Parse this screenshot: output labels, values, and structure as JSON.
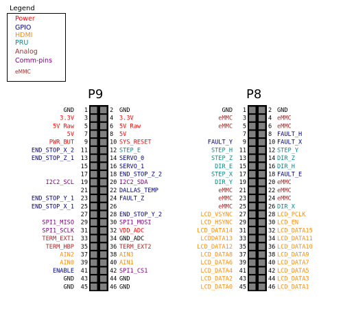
{
  "legend": {
    "title": "Legend",
    "items": [
      {
        "text": "Power",
        "color": "#ff0000"
      },
      {
        "text": "GPIO",
        "color": "#000080"
      },
      {
        "text": "HDMI",
        "color": "#ff8c00"
      },
      {
        "text": "PRU",
        "color": "#008b8b"
      },
      {
        "text": "Analog",
        "color": "#a52a2a"
      },
      {
        "text": "Comm-pins",
        "color": "#800080"
      },
      {
        "text": "eMMC",
        "color": "#a52a2a"
      }
    ]
  },
  "headers": [
    {
      "name": "P9",
      "rows": [
        [
          {
            "t": "GND",
            "c": "k"
          },
          {
            "t": "GND",
            "c": "k"
          }
        ],
        [
          {
            "t": "3.3V",
            "c": "r"
          },
          {
            "t": "3.3V",
            "c": "r"
          }
        ],
        [
          {
            "t": "5V Raw",
            "c": "r"
          },
          {
            "t": "5V Raw",
            "c": "r"
          }
        ],
        [
          {
            "t": "5V",
            "c": "r"
          },
          {
            "t": "5V",
            "c": "r"
          }
        ],
        [
          {
            "t": "PWR_BUT",
            "c": "r"
          },
          {
            "t": "SYS_RESET",
            "c": "r"
          }
        ],
        [
          {
            "t": "END_STOP_X_2",
            "c": "n"
          },
          {
            "t": "STEP_E",
            "c": "t"
          }
        ],
        [
          {
            "t": "END_STOP_Z_1",
            "c": "n"
          },
          {
            "t": "SERVO_0",
            "c": "n"
          }
        ],
        [
          {
            "t": "",
            "c": "n"
          },
          {
            "t": "SERVO_1",
            "c": "n"
          }
        ],
        [
          {
            "t": "",
            "c": "n"
          },
          {
            "t": "END_STOP_Z_2",
            "c": "n"
          }
        ],
        [
          {
            "t": "I2C2_SCL",
            "c": "p"
          },
          {
            "t": "I2C2_SDA",
            "c": "p"
          }
        ],
        [
          {
            "t": "",
            "c": "n"
          },
          {
            "t": "DALLAS_TEMP",
            "c": "n"
          }
        ],
        [
          {
            "t": "END_STOP_Y_1",
            "c": "n"
          },
          {
            "t": "FAULT_Z",
            "c": "n"
          }
        ],
        [
          {
            "t": "END_STOP_X_1",
            "c": "n"
          },
          {
            "t": "",
            "c": "n"
          }
        ],
        [
          {
            "t": "",
            "c": "n"
          },
          {
            "t": "END_STOP_Y_2",
            "c": "n"
          }
        ],
        [
          {
            "t": "SPI1_MISO",
            "c": "p"
          },
          {
            "t": "SPI1_MOSI",
            "c": "p"
          }
        ],
        [
          {
            "t": "SPI1_SCLK",
            "c": "p"
          },
          {
            "t": "VDD_ADC",
            "c": "r"
          }
        ],
        [
          {
            "t": "TERM_EXT1",
            "c": "b"
          },
          {
            "t": "GND_ADC",
            "c": "k"
          }
        ],
        [
          {
            "t": "TERM_HBP",
            "c": "b"
          },
          {
            "t": "TERM_EXT2",
            "c": "b"
          }
        ],
        [
          {
            "t": "AIN2",
            "c": "o"
          },
          {
            "t": "AIN3",
            "c": "o"
          }
        ],
        [
          {
            "t": "AIN0",
            "c": "o"
          },
          {
            "t": "AIN1",
            "c": "o"
          }
        ],
        [
          {
            "t": "ENABLE",
            "c": "n"
          },
          {
            "t": "SPI1_CS1",
            "c": "p"
          }
        ],
        [
          {
            "t": "GND",
            "c": "k"
          },
          {
            "t": "GND",
            "c": "k"
          }
        ],
        [
          {
            "t": "GND",
            "c": "k"
          },
          {
            "t": "GND",
            "c": "k"
          }
        ]
      ]
    },
    {
      "name": "P8",
      "rows": [
        [
          {
            "t": "GND",
            "c": "k"
          },
          {
            "t": "GND",
            "c": "k"
          }
        ],
        [
          {
            "t": "eMMC",
            "c": "b",
            "s": 1
          },
          {
            "t": "eMMC",
            "c": "b",
            "s": 1
          }
        ],
        [
          {
            "t": "eMMC",
            "c": "b",
            "s": 1
          },
          {
            "t": "eMMC",
            "c": "b",
            "s": 1
          }
        ],
        [
          {
            "t": "",
            "c": "n"
          },
          {
            "t": "FAULT_H",
            "c": "n"
          }
        ],
        [
          {
            "t": "FAULT_Y",
            "c": "n"
          },
          {
            "t": "FAULT_X",
            "c": "n"
          }
        ],
        [
          {
            "t": "STEP_H",
            "c": "t"
          },
          {
            "t": "STEP_Y",
            "c": "t"
          }
        ],
        [
          {
            "t": "STEP_Z",
            "c": "t"
          },
          {
            "t": "DIR_Z",
            "c": "t"
          }
        ],
        [
          {
            "t": "DIR_E",
            "c": "t"
          },
          {
            "t": "DIR_H",
            "c": "t"
          }
        ],
        [
          {
            "t": "STEP_X",
            "c": "t"
          },
          {
            "t": "FAULT_E",
            "c": "n"
          }
        ],
        [
          {
            "t": "DIR_Y",
            "c": "t"
          },
          {
            "t": "eMMC",
            "c": "b",
            "s": 1
          }
        ],
        [
          {
            "t": "eMMC",
            "c": "b",
            "s": 1
          },
          {
            "t": "eMMC",
            "c": "b",
            "s": 1
          }
        ],
        [
          {
            "t": "eMMC",
            "c": "b",
            "s": 1
          },
          {
            "t": "eMMC",
            "c": "b",
            "s": 1
          }
        ],
        [
          {
            "t": "eMMC",
            "c": "b",
            "s": 1
          },
          {
            "t": "DIR_X",
            "c": "t"
          }
        ],
        [
          {
            "t": "LCD_VSYNC",
            "c": "o"
          },
          {
            "t": "LCD_PCLK",
            "c": "o"
          }
        ],
        [
          {
            "t": "LCD_HSYNC",
            "c": "o"
          },
          {
            "t": "LCD_EN",
            "c": "o"
          }
        ],
        [
          {
            "t": "LCD_DATA14",
            "c": "o"
          },
          {
            "t": "LCD_DATA15",
            "c": "o"
          }
        ],
        [
          {
            "t": "LCDDATA13",
            "c": "o"
          },
          {
            "t": "LCD_DATA11",
            "c": "o"
          }
        ],
        [
          {
            "t": "LCD_DATA12",
            "c": "o"
          },
          {
            "t": "LCD_DATA10",
            "c": "o"
          }
        ],
        [
          {
            "t": "LCD_DATA8",
            "c": "o"
          },
          {
            "t": "LCD_DATA9",
            "c": "o"
          }
        ],
        [
          {
            "t": "LCD_DATA6",
            "c": "o"
          },
          {
            "t": "LCD_DATA7",
            "c": "o"
          }
        ],
        [
          {
            "t": "LCD_DATA4",
            "c": "o"
          },
          {
            "t": "LCD_DATA5",
            "c": "o"
          }
        ],
        [
          {
            "t": "LCD_DATA2",
            "c": "o"
          },
          {
            "t": "LCD_DATA3",
            "c": "o"
          }
        ],
        [
          {
            "t": "LCD_DATA0",
            "c": "o"
          },
          {
            "t": "LCD_DATA1",
            "c": "o"
          }
        ]
      ]
    }
  ],
  "colors": {
    "k": "#000000",
    "r": "#ff0000",
    "n": "#000080",
    "t": "#008b8b",
    "p": "#800080",
    "b": "#a52a2a",
    "o": "#ff8c00",
    "pin_square": "#808080",
    "connector": "#000000"
  }
}
